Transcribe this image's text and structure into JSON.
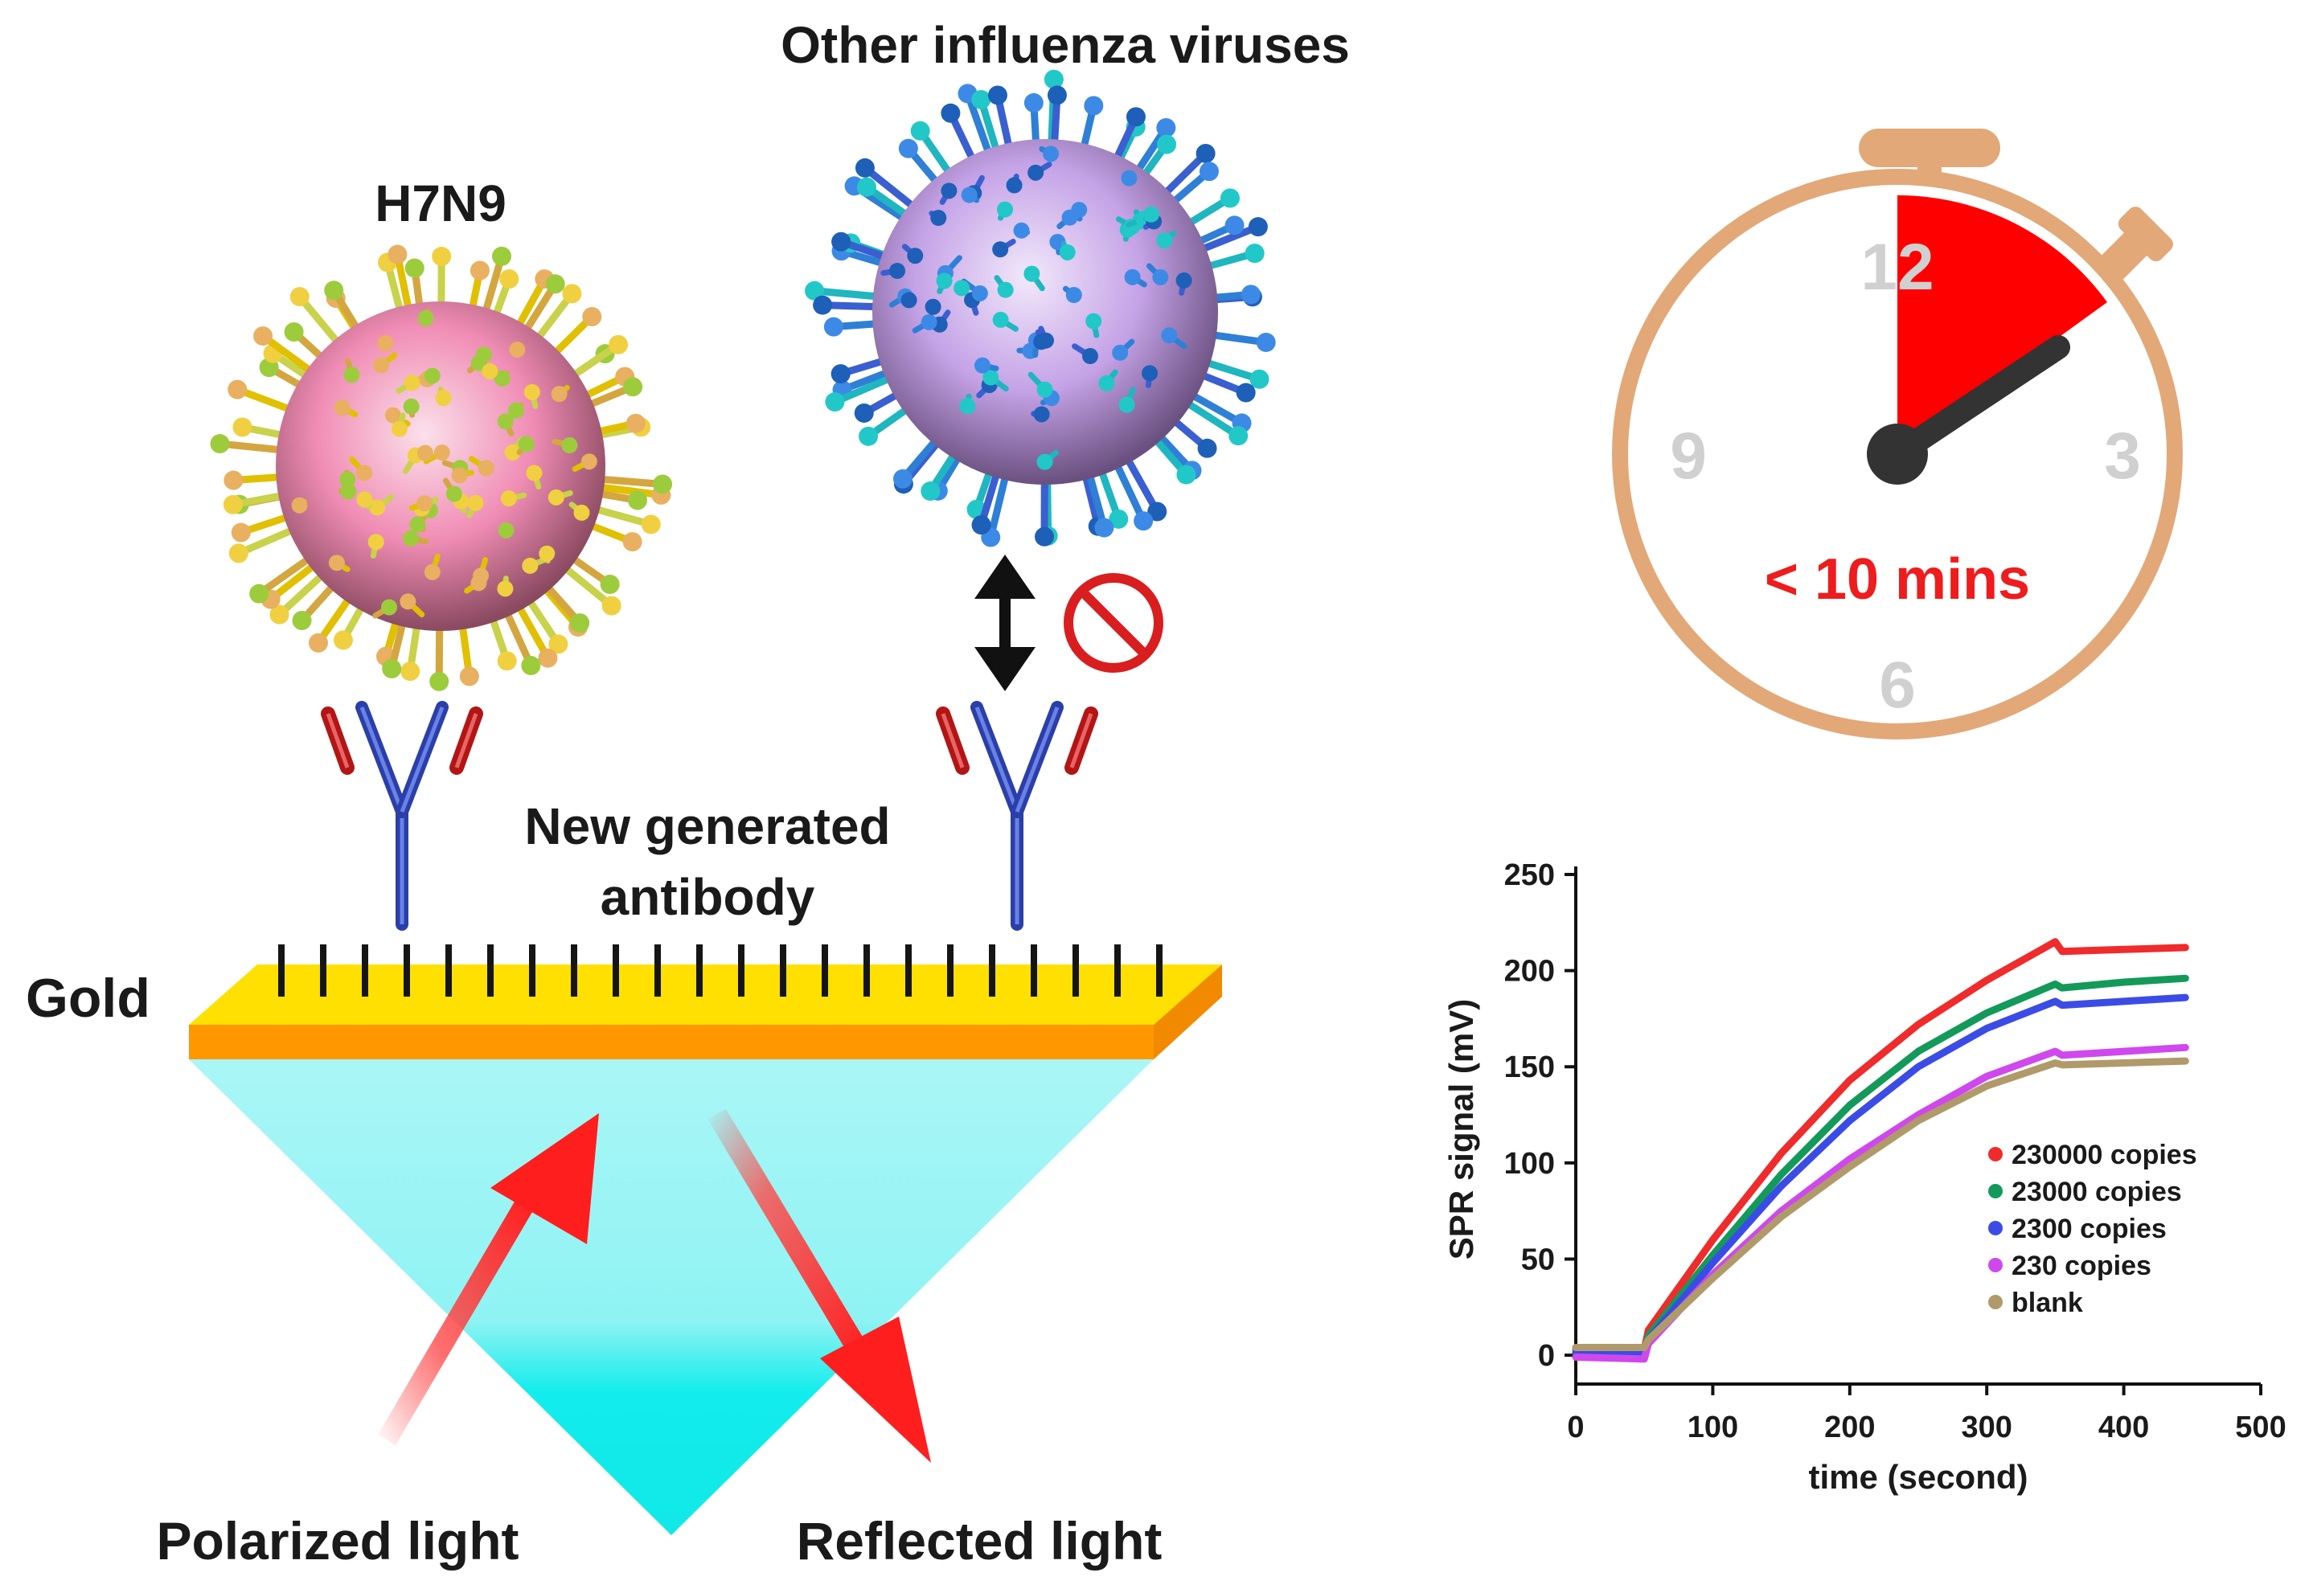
{
  "labels": {
    "other_viruses": "Other influenza viruses",
    "h7n9": "H7N9",
    "antibody_line1": "New generated",
    "antibody_line2": "antibody",
    "gold": "Gold",
    "polarized": "Polarized light",
    "reflected": "Reflected light"
  },
  "timer": {
    "n12": "12",
    "n3": "3",
    "n6": "6",
    "n9": "9",
    "text": "< 10 mins"
  },
  "colors": {
    "gold_top": "#ffe000",
    "gold_edge": "#ff9800",
    "prism": "#8ff3f3",
    "timer_ring": "#e2a878",
    "timer_red": "#ff0000",
    "hand": "#333333"
  },
  "icons": {
    "h7n9": "h7n9-virus-icon",
    "other": "influenza-virus-icon",
    "blocked": "no-binding-icon",
    "arrows": "double-arrow-icon",
    "antibody": "antibody-icon"
  },
  "chart_data": {
    "type": "line",
    "xlabel": "time (second)",
    "ylabel": "SPR signal (mV)",
    "xlim": [
      0,
      500
    ],
    "ylim": [
      -15,
      250
    ],
    "xticks": [
      "0",
      "100",
      "200",
      "300",
      "400",
      "500"
    ],
    "yticks": [
      "0",
      "50",
      "100",
      "150",
      "200",
      "250"
    ],
    "legend_position": "lower-right",
    "series": [
      {
        "name": "230000 copies",
        "color": "#ef2b2b",
        "x": [
          0,
          50,
          53,
          100,
          150,
          200,
          250,
          300,
          350,
          355,
          400,
          445
        ],
        "y": [
          3,
          3,
          13,
          60,
          105,
          143,
          172,
          195,
          215,
          210,
          211,
          212
        ]
      },
      {
        "name": "23000 copies",
        "color": "#139a5a",
        "x": [
          0,
          50,
          53,
          100,
          150,
          200,
          250,
          300,
          350,
          355,
          400,
          445
        ],
        "y": [
          2,
          2,
          10,
          52,
          94,
          130,
          158,
          178,
          193,
          191,
          194,
          196
        ]
      },
      {
        "name": "2300 copies",
        "color": "#3b4ce6",
        "x": [
          0,
          50,
          53,
          100,
          150,
          200,
          250,
          300,
          350,
          355,
          400,
          445
        ],
        "y": [
          1,
          1,
          8,
          48,
          88,
          122,
          150,
          170,
          184,
          182,
          184,
          186
        ]
      },
      {
        "name": "230 copies",
        "color": "#cf48ee",
        "x": [
          0,
          50,
          53,
          100,
          150,
          200,
          250,
          300,
          350,
          355,
          400,
          445
        ],
        "y": [
          -1,
          -2,
          6,
          42,
          75,
          102,
          125,
          145,
          158,
          156,
          158,
          160
        ]
      },
      {
        "name": "blank",
        "color": "#b09a6a",
        "x": [
          0,
          50,
          53,
          100,
          150,
          200,
          250,
          300,
          350,
          355,
          400,
          445
        ],
        "y": [
          4,
          4,
          8,
          40,
          72,
          98,
          122,
          140,
          152,
          151,
          152,
          153
        ]
      }
    ]
  }
}
